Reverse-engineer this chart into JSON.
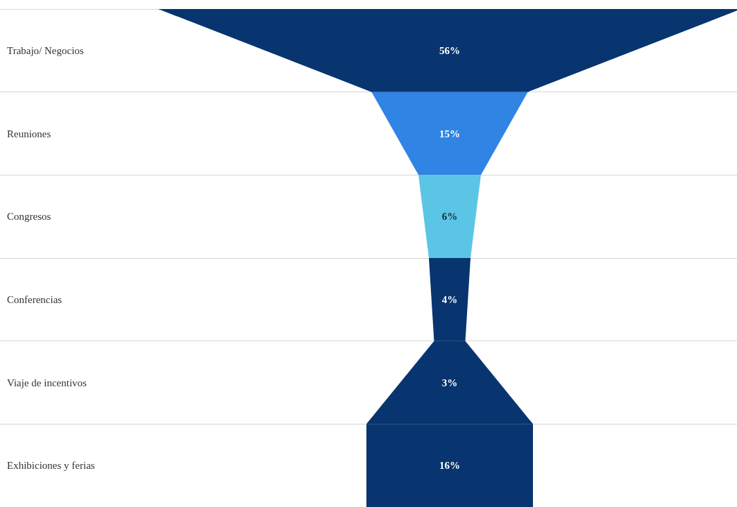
{
  "chart_data": {
    "type": "other",
    "categories": [
      "Trabajo/ Negocios",
      "Reuniones",
      "Congresos",
      "Conferencias",
      "Viaje de incentivos",
      "Exhibiciones y ferias"
    ],
    "values": [
      56,
      15,
      6,
      4,
      3,
      16
    ],
    "value_labels": [
      "56%",
      "15%",
      "6%",
      "4%",
      "3%",
      "16%"
    ],
    "colors": [
      "#08356f",
      "#2f84e4",
      "#5bc5e6",
      "#08356f",
      "#08356f",
      "#08356f"
    ]
  }
}
